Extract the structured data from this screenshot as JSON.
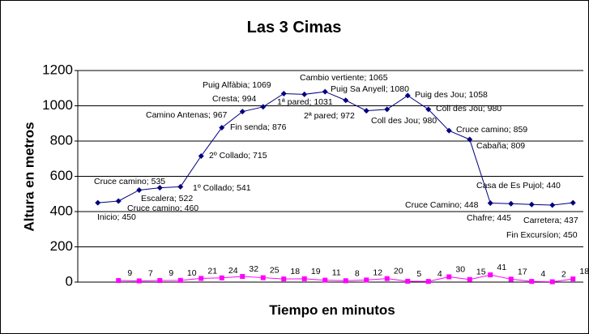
{
  "chart_data": {
    "type": "line",
    "title": "Las 3 Cimas",
    "y_label": "Altura en metros",
    "x_label": "Tiempo en minutos",
    "ylim": [
      0,
      1200
    ],
    "yticks": [
      0,
      200,
      400,
      600,
      800,
      1000,
      1200
    ],
    "grid": true,
    "series": [
      {
        "color": "#000080",
        "marker": "diamond",
        "values": [
          450,
          460,
          522,
          535,
          541,
          715,
          876,
          967,
          994,
          1069,
          1065,
          1080,
          1031,
          972,
          980,
          1058,
          980,
          859,
          809,
          448,
          445,
          440,
          437,
          450
        ],
        "value_labels": [
          "Inicio; 450",
          "Cruce camino; 460",
          "Escalera; 522",
          "Cruce camino; 535",
          "1º Collado; 541",
          "2º Collado; 715",
          "Fin senda; 876",
          "Camino Antenas; 967",
          "Cresta; 994",
          "Puig Alfàbia; 1069",
          "Cambio vertiente; 1065",
          "Puig Sa Anyell; 1080",
          "1ª pared; 1031",
          "2ª pared; 972",
          "Coll des Jou; 980",
          "Puig des Jou; 1058",
          "Coll des Jou; 980",
          "Cruce camino; 859",
          "Cabaña; 809",
          "Cruce Camino; 448",
          "Chafre; 445",
          "Casa de Es Pujol; 440",
          "Carretera; 437",
          "Fin Excursíon; 450"
        ]
      },
      {
        "color": "#ff00ff",
        "marker": "square",
        "values": [
          null,
          9,
          7,
          9,
          10,
          21,
          24,
          32,
          25,
          18,
          19,
          11,
          8,
          12,
          20,
          5,
          4,
          30,
          15,
          41,
          17,
          4,
          2,
          18
        ]
      }
    ]
  }
}
